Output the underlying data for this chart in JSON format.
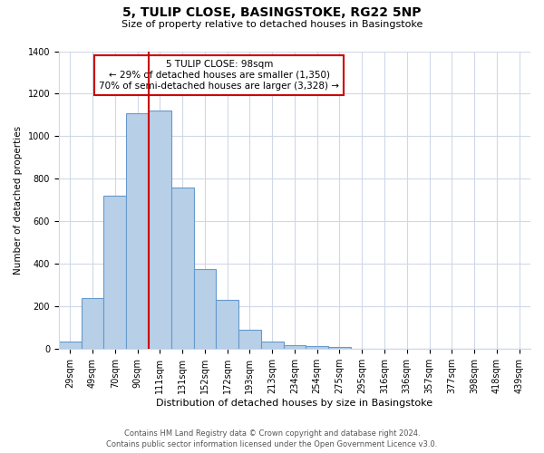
{
  "title": "5, TULIP CLOSE, BASINGSTOKE, RG22 5NP",
  "subtitle": "Size of property relative to detached houses in Basingstoke",
  "xlabel": "Distribution of detached houses by size in Basingstoke",
  "ylabel": "Number of detached properties",
  "bar_labels": [
    "29sqm",
    "49sqm",
    "70sqm",
    "90sqm",
    "111sqm",
    "131sqm",
    "152sqm",
    "172sqm",
    "193sqm",
    "213sqm",
    "234sqm",
    "254sqm",
    "275sqm",
    "295sqm",
    "316sqm",
    "336sqm",
    "357sqm",
    "377sqm",
    "398sqm",
    "418sqm",
    "439sqm"
  ],
  "bar_values": [
    35,
    240,
    720,
    1110,
    1120,
    760,
    375,
    230,
    90,
    35,
    20,
    15,
    10,
    0,
    0,
    0,
    0,
    0,
    0,
    0,
    0
  ],
  "bar_color": "#b8cfe8",
  "bar_edge_color": "#6699cc",
  "vline_x_index": 3,
  "vline_color": "#cc0000",
  "annotation_title": "5 TULIP CLOSE: 98sqm",
  "annotation_line1": "← 29% of detached houses are smaller (1,350)",
  "annotation_line2": "70% of semi-detached houses are larger (3,328) →",
  "annotation_box_color": "#ffffff",
  "annotation_box_edge": "#cc0000",
  "ylim": [
    0,
    1400
  ],
  "yticks": [
    0,
    200,
    400,
    600,
    800,
    1000,
    1200,
    1400
  ],
  "footnote1": "Contains HM Land Registry data © Crown copyright and database right 2024.",
  "footnote2": "Contains public sector information licensed under the Open Government Licence v3.0.",
  "background_color": "#ffffff",
  "grid_color": "#d0d8e8",
  "title_fontsize": 10,
  "subtitle_fontsize": 8,
  "xlabel_fontsize": 8,
  "ylabel_fontsize": 7.5,
  "tick_fontsize": 7,
  "footnote_fontsize": 6,
  "annotation_fontsize": 7.5
}
